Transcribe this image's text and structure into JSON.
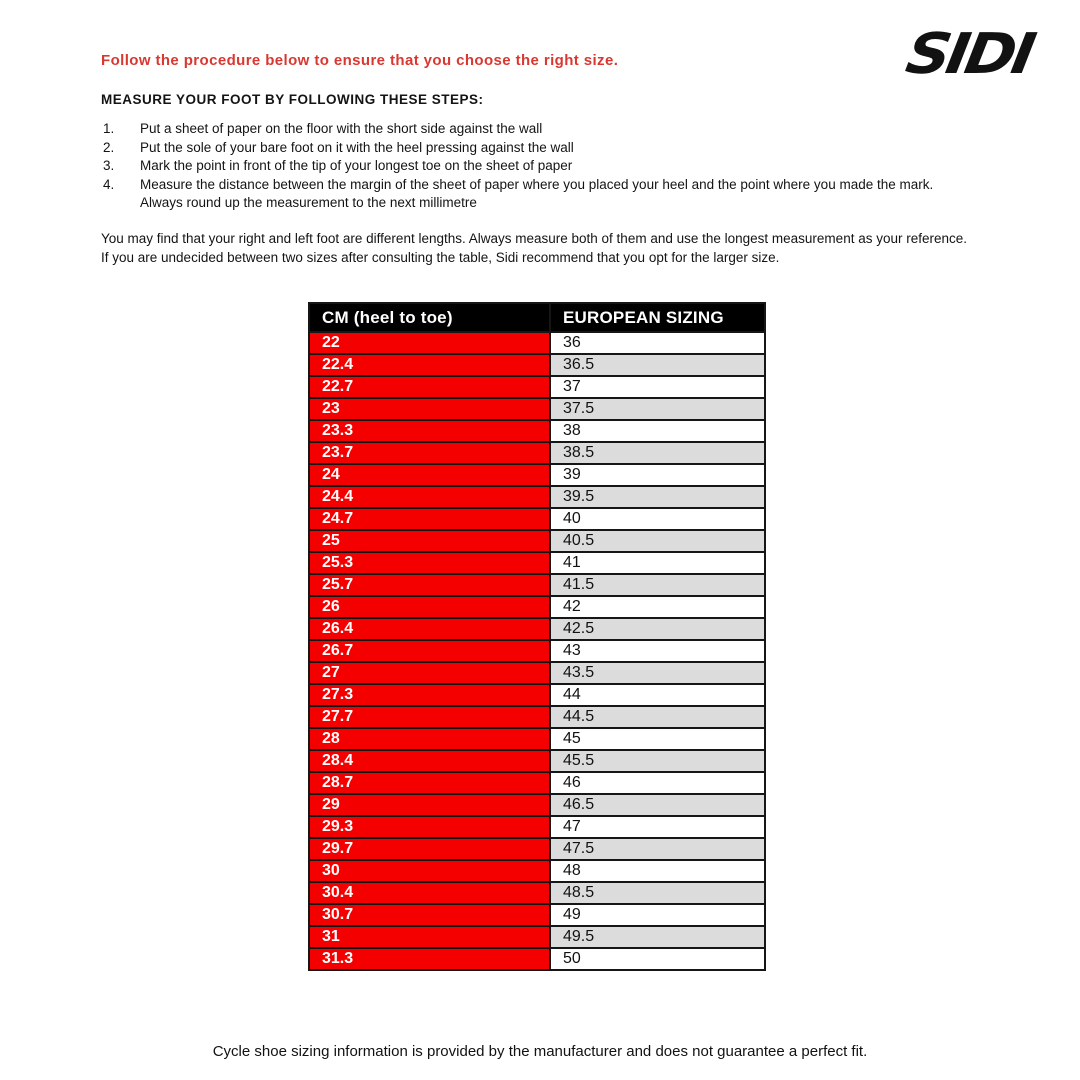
{
  "header": {
    "red_heading": "Follow the procedure below to ensure that you choose the right size.",
    "logo_text": "SIDI",
    "steps_heading": "MEASURE YOUR FOOT BY FOLLOWING THESE STEPS:"
  },
  "steps": [
    "Put a sheet of paper on the floor with the short side against the wall",
    "Put the sole of your bare foot on it with the heel pressing against the wall",
    "Mark the point in front of the tip of your longest toe on the sheet of paper",
    "Measure the distance between the margin of the sheet of paper where you placed your heel and the point where you made the mark. Always round up the measurement to the next millimetre"
  ],
  "notes": [
    "You may find that your right and left foot are different lengths. Always measure both of them and use the longest measurement as your reference.",
    "If you are undecided between two sizes after consulting the table, Sidi recommend that you opt for the larger size."
  ],
  "table": {
    "columns": [
      "CM (heel to toe)",
      "EUROPEAN SIZING"
    ],
    "rows": [
      [
        "22",
        "36"
      ],
      [
        "22.4",
        "36.5"
      ],
      [
        "22.7",
        "37"
      ],
      [
        "23",
        "37.5"
      ],
      [
        "23.3",
        "38"
      ],
      [
        "23.7",
        "38.5"
      ],
      [
        "24",
        "39"
      ],
      [
        "24.4",
        "39.5"
      ],
      [
        "24.7",
        "40"
      ],
      [
        "25",
        "40.5"
      ],
      [
        "25.3",
        "41"
      ],
      [
        "25.7",
        "41.5"
      ],
      [
        "26",
        "42"
      ],
      [
        "26.4",
        "42.5"
      ],
      [
        "26.7",
        "43"
      ],
      [
        "27",
        "43.5"
      ],
      [
        "27.3",
        "44"
      ],
      [
        "27.7",
        "44.5"
      ],
      [
        "28",
        "45"
      ],
      [
        "28.4",
        "45.5"
      ],
      [
        "28.7",
        "46"
      ],
      [
        "29",
        "46.5"
      ],
      [
        "29.3",
        "47"
      ],
      [
        "29.7",
        "47.5"
      ],
      [
        "30",
        "48"
      ],
      [
        "30.4",
        "48.5"
      ],
      [
        "30.7",
        "49"
      ],
      [
        "31",
        "49.5"
      ],
      [
        "31.3",
        "50"
      ]
    ]
  },
  "footer": "Cycle shoe sizing information is provided by the manufacturer and does not guarantee a perfect fit.",
  "colors": {
    "accent_red": "#d93831",
    "table_red": "#f40000",
    "header_black": "#000000",
    "row_alt_gray": "#dcdcdc"
  }
}
